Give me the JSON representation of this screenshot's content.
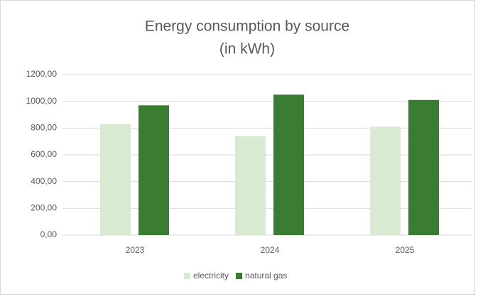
{
  "chart_data": {
    "type": "bar",
    "title": "Energy consumption by source",
    "subtitle": "(in kWh)",
    "categories": [
      "2023",
      "2024",
      "2025"
    ],
    "series": [
      {
        "name": "electricity",
        "color": "#d9ead3",
        "values": [
          830,
          740,
          810
        ]
      },
      {
        "name": "natural gas",
        "color": "#3a7d32",
        "values": [
          970,
          1050,
          1010
        ]
      }
    ],
    "ylim": [
      0,
      1200
    ],
    "yticks": [
      {
        "value": 0,
        "label": "0,00"
      },
      {
        "value": 200,
        "label": "200,00"
      },
      {
        "value": 400,
        "label": "400,00"
      },
      {
        "value": 600,
        "label": "600,00"
      },
      {
        "value": 800,
        "label": "800,00"
      },
      {
        "value": 1000,
        "label": "1000,00"
      },
      {
        "value": 1200,
        "label": "1200,00"
      }
    ],
    "grid": true,
    "legend": "bottom"
  }
}
